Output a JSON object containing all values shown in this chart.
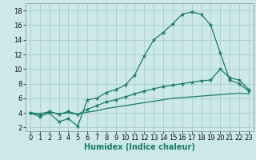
{
  "xlabel": "Humidex (Indice chaleur)",
  "bg_color": "#cce8e8",
  "grid_color": "#aacccc",
  "line_color": "#1a7a6a",
  "xlim": [
    -0.5,
    23.5
  ],
  "ylim": [
    1.5,
    19.0
  ],
  "xticks": [
    0,
    1,
    2,
    3,
    4,
    5,
    6,
    7,
    8,
    9,
    10,
    11,
    12,
    13,
    14,
    15,
    16,
    17,
    18,
    19,
    20,
    21,
    22,
    23
  ],
  "yticks": [
    2,
    4,
    6,
    8,
    10,
    12,
    14,
    16,
    18
  ],
  "line1_x": [
    0,
    1,
    2,
    3,
    4,
    5,
    6,
    7,
    8,
    9,
    10,
    11,
    12,
    13,
    14,
    15,
    16,
    17,
    18,
    19,
    20,
    21,
    22,
    23
  ],
  "line1_y": [
    4.0,
    3.5,
    4.0,
    2.8,
    3.2,
    2.2,
    5.8,
    6.0,
    6.8,
    7.2,
    7.8,
    9.2,
    11.8,
    14.0,
    15.0,
    16.2,
    17.5,
    17.8,
    17.5,
    16.0,
    12.2,
    8.5,
    8.0,
    7.0
  ],
  "line2_x": [
    0,
    1,
    2,
    3,
    4,
    5,
    6,
    7,
    8,
    9,
    10,
    11,
    12,
    13,
    14,
    15,
    16,
    17,
    18,
    19,
    20,
    21,
    22,
    23
  ],
  "line2_y": [
    4.0,
    3.8,
    4.2,
    3.8,
    4.2,
    3.8,
    4.5,
    5.0,
    5.5,
    5.8,
    6.2,
    6.6,
    7.0,
    7.3,
    7.6,
    7.8,
    8.0,
    8.2,
    8.4,
    8.5,
    10.0,
    8.8,
    8.5,
    7.2
  ],
  "line3_x": [
    0,
    1,
    2,
    3,
    4,
    5,
    6,
    7,
    8,
    9,
    10,
    11,
    12,
    13,
    14,
    15,
    16,
    17,
    18,
    19,
    20,
    21,
    22,
    23
  ],
  "line3_y": [
    4.0,
    3.9,
    4.1,
    3.9,
    4.0,
    3.8,
    4.1,
    4.3,
    4.6,
    4.8,
    5.0,
    5.2,
    5.4,
    5.6,
    5.8,
    6.0,
    6.1,
    6.2,
    6.3,
    6.4,
    6.5,
    6.6,
    6.7,
    6.6
  ],
  "xlabel_fontsize": 7,
  "tick_fontsize": 6
}
